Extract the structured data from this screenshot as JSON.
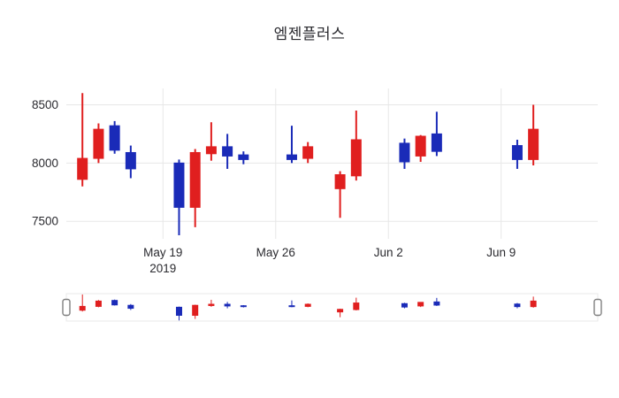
{
  "chart_data": {
    "type": "candlestick",
    "title": "엠젠플러스",
    "up_color": "#e01f1f",
    "down_color": "#1a2bb8",
    "grid": true,
    "rangeslider": true,
    "x_range": [
      "2019-05-13",
      "2019-06-15"
    ],
    "y_range": [
      7350,
      8640
    ],
    "y_ticks": [
      7500,
      8000,
      8500
    ],
    "x_ticks": [
      {
        "date": "2019-05-19",
        "label": "May 19",
        "sublabel": "2019"
      },
      {
        "date": "2019-05-26",
        "label": "May 26",
        "sublabel": ""
      },
      {
        "date": "2019-06-02",
        "label": "Jun 2",
        "sublabel": ""
      },
      {
        "date": "2019-06-09",
        "label": "Jun 9",
        "sublabel": ""
      }
    ],
    "candles": [
      {
        "date": "2019-05-14",
        "open": 7860,
        "high": 8600,
        "low": 7800,
        "close": 8040
      },
      {
        "date": "2019-05-15",
        "open": 8040,
        "high": 8340,
        "low": 8000,
        "close": 8290
      },
      {
        "date": "2019-05-16",
        "open": 8320,
        "high": 8360,
        "low": 8080,
        "close": 8110
      },
      {
        "date": "2019-05-17",
        "open": 8090,
        "high": 8150,
        "low": 7870,
        "close": 7950
      },
      {
        "date": "2019-05-20",
        "open": 8000,
        "high": 8030,
        "low": 7380,
        "close": 7620
      },
      {
        "date": "2019-05-21",
        "open": 7620,
        "high": 8120,
        "low": 7450,
        "close": 8090
      },
      {
        "date": "2019-05-22",
        "open": 8080,
        "high": 8350,
        "low": 8020,
        "close": 8140
      },
      {
        "date": "2019-05-23",
        "open": 8140,
        "high": 8250,
        "low": 7950,
        "close": 8060
      },
      {
        "date": "2019-05-24",
        "open": 8070,
        "high": 8100,
        "low": 7990,
        "close": 8030
      },
      {
        "date": "2019-05-27",
        "open": 8070,
        "high": 8320,
        "low": 8000,
        "close": 8030
      },
      {
        "date": "2019-05-28",
        "open": 8040,
        "high": 8180,
        "low": 8000,
        "close": 8140
      },
      {
        "date": "2019-05-30",
        "open": 7780,
        "high": 7930,
        "low": 7530,
        "close": 7900
      },
      {
        "date": "2019-05-31",
        "open": 7890,
        "high": 8450,
        "low": 7850,
        "close": 8200
      },
      {
        "date": "2019-06-03",
        "open": 8170,
        "high": 8210,
        "low": 7950,
        "close": 8010
      },
      {
        "date": "2019-06-04",
        "open": 8060,
        "high": 8240,
        "low": 8010,
        "close": 8230
      },
      {
        "date": "2019-06-05",
        "open": 8250,
        "high": 8440,
        "low": 8060,
        "close": 8100
      },
      {
        "date": "2019-06-10",
        "open": 8150,
        "high": 8200,
        "low": 7950,
        "close": 8030
      },
      {
        "date": "2019-06-11",
        "open": 8030,
        "high": 8500,
        "low": 7980,
        "close": 8290
      }
    ]
  }
}
